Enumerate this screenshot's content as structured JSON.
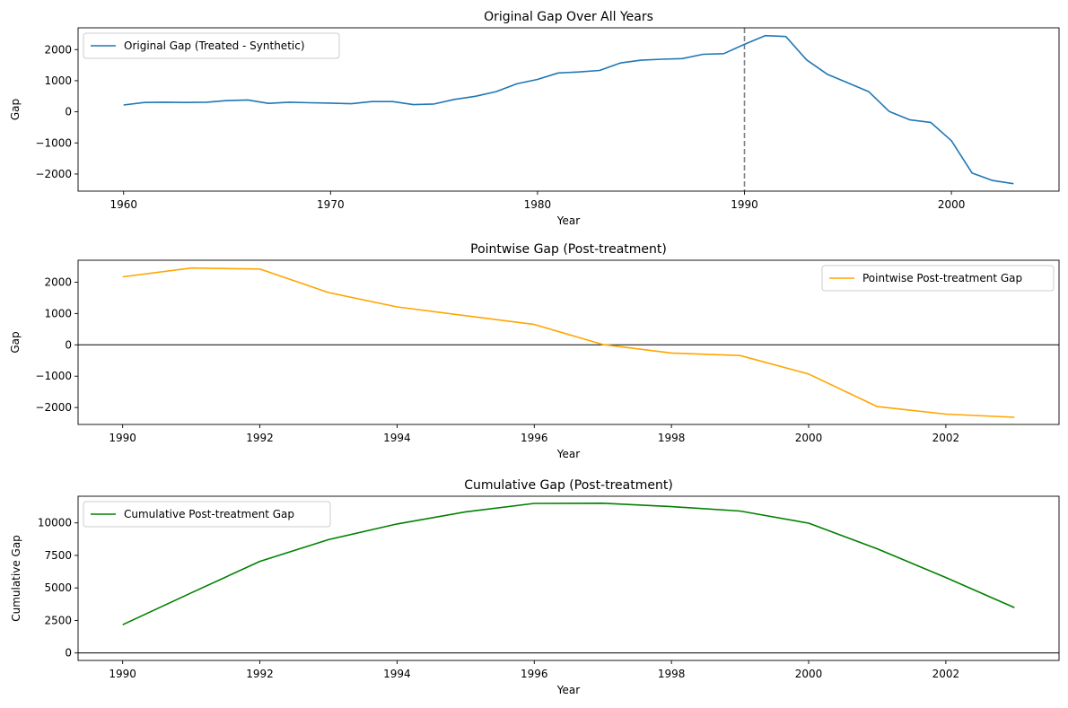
{
  "chart_data": [
    {
      "type": "line",
      "title": "Original Gap Over All Years",
      "xlabel": "Year",
      "ylabel": "Gap",
      "xlim": [
        1957.8,
        2005.2
      ],
      "ylim": [
        -2550,
        2700
      ],
      "xticks": [
        1960,
        1970,
        1980,
        1990,
        2000
      ],
      "yticks": [
        -2000,
        -1000,
        0,
        1000,
        2000
      ],
      "legend": "upper-left",
      "vline": 1990,
      "hline": null,
      "series": [
        {
          "name": "Original Gap (Treated - Synthetic)",
          "color": "#1f77b4",
          "x": [
            1960,
            1961,
            1962,
            1963,
            1964,
            1965,
            1966,
            1967,
            1968,
            1969,
            1970,
            1971,
            1972,
            1973,
            1974,
            1975,
            1976,
            1977,
            1978,
            1979,
            1980,
            1981,
            1982,
            1983,
            1984,
            1985,
            1986,
            1987,
            1988,
            1989,
            1990,
            1991,
            1992,
            1993,
            1994,
            1995,
            1996,
            1997,
            1998,
            1999,
            2000,
            2001,
            2002,
            2003
          ],
          "values": [
            220,
            300,
            310,
            300,
            310,
            360,
            380,
            270,
            310,
            290,
            280,
            260,
            330,
            330,
            230,
            250,
            400,
            500,
            650,
            900,
            1040,
            1250,
            1280,
            1330,
            1570,
            1660,
            1690,
            1710,
            1850,
            1870,
            2170,
            2450,
            2420,
            1670,
            1210,
            930,
            650,
            10,
            -260,
            -340,
            -930,
            -1970,
            -2210,
            -2310
          ]
        }
      ]
    },
    {
      "type": "line",
      "title": "Pointwise Gap (Post-treatment)",
      "xlabel": "Year",
      "ylabel": "Gap",
      "xlim": [
        1989.35,
        2003.65
      ],
      "ylim": [
        -2540,
        2700
      ],
      "xticks": [
        1990,
        1992,
        1994,
        1996,
        1998,
        2000,
        2002
      ],
      "yticks": [
        -2000,
        -1000,
        0,
        1000,
        2000
      ],
      "legend": "upper-right",
      "vline": null,
      "hline": 0,
      "series": [
        {
          "name": "Pointwise Post-treatment Gap",
          "color": "#ffa500",
          "x": [
            1990,
            1991,
            1992,
            1993,
            1994,
            1995,
            1996,
            1997,
            1998,
            1999,
            2000,
            2001,
            2002,
            2003
          ],
          "values": [
            2170,
            2450,
            2420,
            1670,
            1210,
            930,
            650,
            10,
            -260,
            -340,
            -930,
            -1970,
            -2210,
            -2310
          ]
        }
      ]
    },
    {
      "type": "line",
      "title": "Cumulative Gap (Post-treatment)",
      "xlabel": "Year",
      "ylabel": "Cumulative Gap",
      "xlim": [
        1989.35,
        2003.65
      ],
      "ylim": [
        -575,
        12050
      ],
      "xticks": [
        1990,
        1992,
        1994,
        1996,
        1998,
        2000,
        2002
      ],
      "yticks": [
        0,
        2500,
        5000,
        7500,
        10000
      ],
      "legend": "upper-left",
      "vline": null,
      "hline": 0,
      "series": [
        {
          "name": "Cumulative Post-treatment Gap",
          "color": "#008000",
          "x": [
            1990,
            1991,
            1992,
            1993,
            1994,
            1995,
            1996,
            1997,
            1998,
            1999,
            2000,
            2001,
            2002,
            2003
          ],
          "values": [
            2170,
            4620,
            7040,
            8710,
            9920,
            10850,
            11500,
            11510,
            11250,
            10910,
            9980,
            8010,
            5800,
            3490
          ]
        }
      ]
    }
  ]
}
